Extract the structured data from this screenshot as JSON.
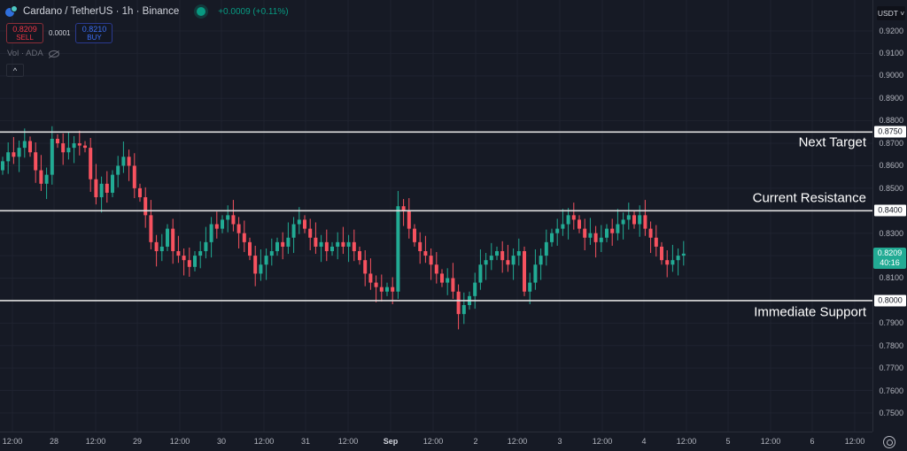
{
  "header": {
    "symbol_title": "Cardano / TetherUS · 1h · Binance",
    "change": "+0.0009 (+0.11%)",
    "sell_price": "0.8209",
    "sell_label": "SELL",
    "spread": "0.0001",
    "buy_price": "0.8210",
    "buy_label": "BUY",
    "volume_label": "Vol · ADA",
    "collapse_icon": "^"
  },
  "price_axis": {
    "currency": "USDT ˅",
    "ticks": [
      "0.9200",
      "0.9100",
      "0.9000",
      "0.8900",
      "0.8800",
      "0.8700",
      "0.8600",
      "0.8500",
      "0.8300",
      "0.8100",
      "0.7900",
      "0.7800",
      "0.7700",
      "0.7600",
      "0.7500"
    ],
    "last_price": "0.8209",
    "countdown": "40:16"
  },
  "levels": [
    {
      "price": "0.8750",
      "label": "Next Target"
    },
    {
      "price": "0.8400",
      "label": "Current Resistance"
    },
    {
      "price": "0.8000",
      "label": "Immediate Support"
    }
  ],
  "time_axis": {
    "ticks": [
      "12:00",
      "28",
      "12:00",
      "29",
      "12:00",
      "30",
      "12:00",
      "31",
      "12:00",
      "Sep",
      "12:00",
      "2",
      "12:00",
      "3",
      "12:00",
      "4",
      "12:00",
      "5",
      "12:00",
      "6",
      "12:00"
    ]
  },
  "colors": {
    "background": "#161a25",
    "up": "#089981",
    "down": "#f23645",
    "up_fill": "#22ab94",
    "down_fill": "#f7525f",
    "level_line": "#e0e0e0"
  },
  "chart_data": {
    "type": "candlestick",
    "title": "Cardano / TetherUS · 1h · Binance",
    "xlabel": "",
    "ylabel": "USDT",
    "ylim": [
      0.745,
      0.925
    ],
    "x_tick_labels": [
      "12:00",
      "28",
      "12:00",
      "29",
      "12:00",
      "30",
      "12:00",
      "31",
      "12:00",
      "Sep",
      "12:00",
      "2",
      "12:00",
      "3",
      "12:00",
      "4",
      "12:00",
      "5",
      "12:00",
      "6",
      "12:00"
    ],
    "y_tick_labels": [
      "0.9200",
      "0.9100",
      "0.9000",
      "0.8900",
      "0.8800",
      "0.8700",
      "0.8600",
      "0.8500",
      "0.8400",
      "0.8300",
      "0.8200",
      "0.8100",
      "0.8000",
      "0.7900",
      "0.7800",
      "0.7700",
      "0.7600",
      "0.7500"
    ],
    "horizontal_levels": [
      {
        "value": 0.875,
        "label": "Next Target"
      },
      {
        "value": 0.84,
        "label": "Current Resistance"
      },
      {
        "value": 0.8,
        "label": "Immediate Support"
      }
    ],
    "last_price": 0.8209,
    "close_path": [
      0.862,
      0.866,
      0.864,
      0.868,
      0.871,
      0.866,
      0.858,
      0.852,
      0.856,
      0.872,
      0.87,
      0.866,
      0.868,
      0.87,
      0.869,
      0.868,
      0.854,
      0.846,
      0.852,
      0.848,
      0.856,
      0.86,
      0.864,
      0.86,
      0.85,
      0.846,
      0.838,
      0.826,
      0.822,
      0.824,
      0.832,
      0.822,
      0.82,
      0.818,
      0.815,
      0.82,
      0.822,
      0.826,
      0.834,
      0.832,
      0.836,
      0.838,
      0.834,
      0.83,
      0.826,
      0.82,
      0.812,
      0.816,
      0.82,
      0.822,
      0.826,
      0.824,
      0.828,
      0.834,
      0.836,
      0.832,
      0.828,
      0.824,
      0.826,
      0.822,
      0.824,
      0.826,
      0.824,
      0.826,
      0.822,
      0.818,
      0.812,
      0.808,
      0.806,
      0.804,
      0.806,
      0.804,
      0.842,
      0.84,
      0.832,
      0.826,
      0.822,
      0.82,
      0.816,
      0.812,
      0.808,
      0.81,
      0.804,
      0.794,
      0.798,
      0.802,
      0.808,
      0.816,
      0.818,
      0.82,
      0.822,
      0.818,
      0.816,
      0.82,
      0.822,
      0.804,
      0.808,
      0.816,
      0.82,
      0.826,
      0.83,
      0.832,
      0.834,
      0.838,
      0.836,
      0.832,
      0.828,
      0.83,
      0.826,
      0.828,
      0.832,
      0.83,
      0.834,
      0.836,
      0.838,
      0.834,
      0.838,
      0.832,
      0.828,
      0.824,
      0.818,
      0.816,
      0.818,
      0.82,
      0.8209
    ],
    "grid": true
  }
}
